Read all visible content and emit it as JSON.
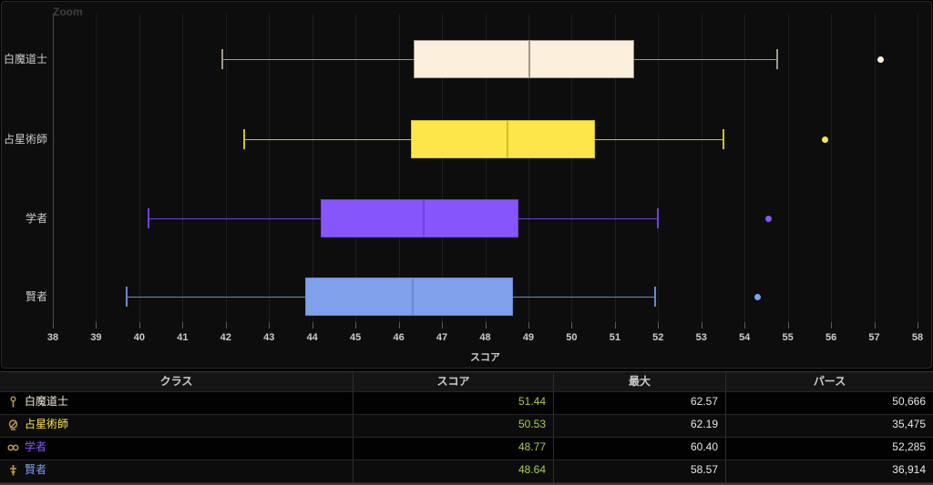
{
  "chart": {
    "zoom_label": "Zoom",
    "x_axis_title": "スコア"
  },
  "chart_data": {
    "type": "boxplot",
    "orientation": "horizontal",
    "title": "",
    "xlabel": "スコア",
    "ylabel": "",
    "axis_range": [
      38,
      58
    ],
    "ticks": [
      38,
      39,
      40,
      41,
      42,
      43,
      44,
      45,
      46,
      47,
      48,
      49,
      50,
      51,
      52,
      53,
      54,
      55,
      56,
      57,
      58
    ],
    "grid": true,
    "categories": [
      "白魔道士",
      "占星術師",
      "学者",
      "賢者"
    ],
    "series": [
      {
        "name": "白魔道士",
        "low": 41.9,
        "q1": 46.35,
        "median": 49.02,
        "q3": 51.44,
        "high": 54.73,
        "outliers": [
          57.14
        ],
        "fill": "#fcf0dd",
        "stroke": "#a29a8c"
      },
      {
        "name": "占星術師",
        "low": 42.4,
        "q1": 46.28,
        "median": 48.52,
        "q3": 50.53,
        "high": 53.49,
        "outliers": [
          55.85
        ],
        "fill": "#fce649",
        "stroke": "#d3c024"
      },
      {
        "name": "学者",
        "low": 40.19,
        "q1": 44.2,
        "median": 46.57,
        "q3": 48.77,
        "high": 51.97,
        "outliers": [
          54.54
        ],
        "fill": "#8655fb",
        "stroke": "#7440e0"
      },
      {
        "name": "賢者",
        "low": 39.69,
        "q1": 43.84,
        "median": 46.32,
        "q3": 48.64,
        "high": 51.91,
        "outliers": [
          54.29
        ],
        "fill": "#7fa0eb",
        "stroke": "#6a89d0"
      }
    ]
  },
  "table": {
    "columns": [
      "クラス",
      "スコア",
      "最大",
      "パース"
    ],
    "rows": [
      {
        "class": "白魔道士",
        "icon": "whm-icon",
        "class_color": "#f5ecd8",
        "score": "51.44",
        "max": "62.57",
        "parse": "50,666"
      },
      {
        "class": "占星術師",
        "icon": "ast-icon",
        "class_color": "#fce649",
        "score": "50.53",
        "max": "62.19",
        "parse": "35,475"
      },
      {
        "class": "学者",
        "icon": "sch-icon",
        "class_color": "#8657ff",
        "score": "48.77",
        "max": "60.40",
        "parse": "52,285"
      },
      {
        "class": "賢者",
        "icon": "sge-icon",
        "class_color": "#80a0f0",
        "score": "48.64",
        "max": "58.57",
        "parse": "36,914"
      }
    ]
  },
  "colors": {
    "background": "#000000",
    "panel": "#0d0d0d",
    "gridline": "#1e1e1e",
    "axis_text": "#cccccc",
    "score_green": "#a9cf54",
    "icon_gold": "#c49a4e"
  }
}
